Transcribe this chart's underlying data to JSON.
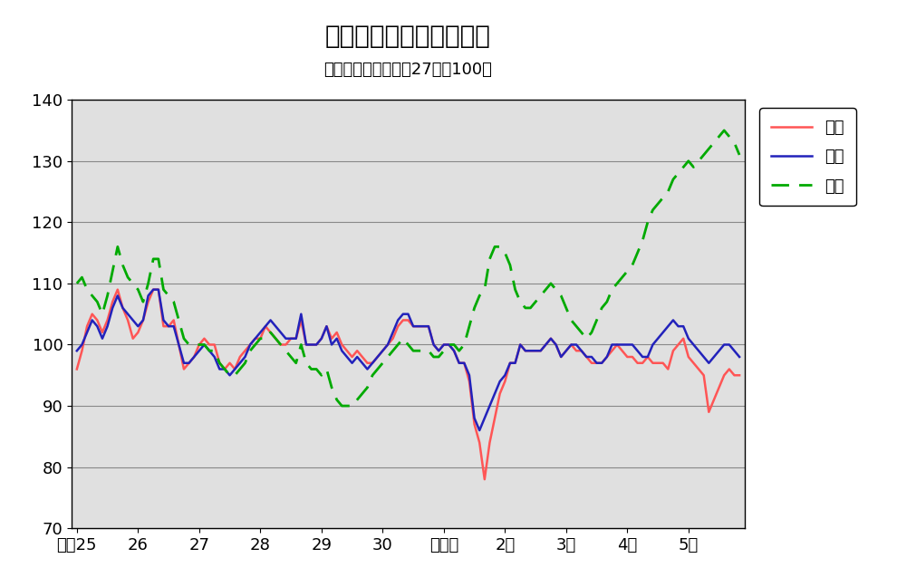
{
  "title": "鳥取県鉱工業指数の推移",
  "subtitle": "（季節調整済、平成27年＝100）",
  "ylim": [
    70,
    140
  ],
  "yticks": [
    70,
    80,
    90,
    100,
    110,
    120,
    130,
    140
  ],
  "x_labels": [
    "平成25",
    "26",
    "27",
    "28",
    "29",
    "30",
    "令和元",
    "2年",
    "3年",
    "4年",
    "5年"
  ],
  "x_tick_positions": [
    0,
    12,
    24,
    36,
    48,
    60,
    72,
    84,
    96,
    108,
    120
  ],
  "legend_labels": [
    "生産",
    "出荷",
    "在庫"
  ],
  "line_colors": [
    "#FF5555",
    "#2222BB",
    "#00AA00"
  ],
  "title_fontsize": 20,
  "subtitle_fontsize": 13,
  "tick_fontsize": 13,
  "legend_fontsize": 13,
  "production": [
    96,
    99,
    103,
    105,
    104,
    102,
    104,
    107,
    109,
    106,
    104,
    101,
    102,
    104,
    107,
    109,
    109,
    103,
    103,
    104,
    100,
    96,
    97,
    98,
    100,
    101,
    100,
    100,
    97,
    96,
    97,
    96,
    98,
    99,
    100,
    101,
    101,
    103,
    102,
    101,
    100,
    100,
    101,
    101,
    104,
    100,
    100,
    100,
    101,
    103,
    101,
    102,
    100,
    99,
    98,
    99,
    98,
    97,
    97,
    98,
    99,
    100,
    101,
    103,
    104,
    104,
    103,
    103,
    103,
    103,
    100,
    99,
    100,
    100,
    99,
    97,
    97,
    94,
    87,
    84,
    78,
    84,
    88,
    92,
    94,
    97,
    97,
    100,
    99,
    99,
    99,
    99,
    100,
    101,
    100,
    98,
    99,
    100,
    99,
    99,
    98,
    97,
    97,
    97,
    98,
    99,
    100,
    99,
    98,
    98,
    97,
    97,
    98,
    97,
    97,
    97,
    96,
    99,
    100,
    101,
    98,
    97,
    96,
    95,
    89,
    91,
    93,
    95,
    96,
    95,
    95
  ],
  "shipment": [
    99,
    100,
    102,
    104,
    103,
    101,
    103,
    106,
    108,
    106,
    105,
    104,
    103,
    104,
    108,
    109,
    109,
    104,
    103,
    103,
    100,
    97,
    97,
    98,
    99,
    100,
    99,
    98,
    96,
    96,
    95,
    96,
    97,
    98,
    100,
    101,
    102,
    103,
    104,
    103,
    102,
    101,
    101,
    101,
    105,
    100,
    100,
    100,
    101,
    103,
    100,
    101,
    99,
    98,
    97,
    98,
    97,
    96,
    97,
    98,
    99,
    100,
    102,
    104,
    105,
    105,
    103,
    103,
    103,
    103,
    100,
    99,
    100,
    100,
    99,
    97,
    97,
    95,
    88,
    86,
    88,
    90,
    92,
    94,
    95,
    97,
    97,
    100,
    99,
    99,
    99,
    99,
    100,
    101,
    100,
    98,
    99,
    100,
    100,
    99,
    98,
    98,
    97,
    97,
    98,
    100,
    100,
    100,
    100,
    100,
    99,
    98,
    98,
    100,
    101,
    102,
    103,
    104,
    103,
    103,
    101,
    100,
    99,
    98,
    97,
    98,
    99,
    100,
    100,
    99,
    98
  ],
  "inventory": [
    110,
    111,
    109,
    108,
    107,
    105,
    108,
    112,
    116,
    113,
    111,
    110,
    109,
    107,
    110,
    114,
    114,
    109,
    108,
    107,
    104,
    101,
    100,
    100,
    100,
    100,
    99,
    99,
    97,
    96,
    95,
    95,
    96,
    97,
    99,
    100,
    101,
    101,
    102,
    101,
    100,
    99,
    98,
    97,
    100,
    97,
    96,
    96,
    95,
    96,
    93,
    91,
    90,
    90,
    90,
    91,
    92,
    93,
    95,
    96,
    97,
    98,
    99,
    100,
    101,
    100,
    99,
    99,
    99,
    99,
    98,
    98,
    99,
    100,
    100,
    99,
    100,
    103,
    106,
    108,
    109,
    114,
    116,
    116,
    115,
    113,
    109,
    107,
    106,
    106,
    107,
    108,
    109,
    110,
    109,
    108,
    106,
    104,
    103,
    102,
    101,
    102,
    104,
    106,
    107,
    109,
    110,
    111,
    112,
    113,
    115,
    117,
    120,
    122,
    123,
    124,
    125,
    127,
    128,
    129,
    130,
    129,
    130,
    131,
    132,
    133,
    134,
    135,
    134,
    133,
    131
  ]
}
